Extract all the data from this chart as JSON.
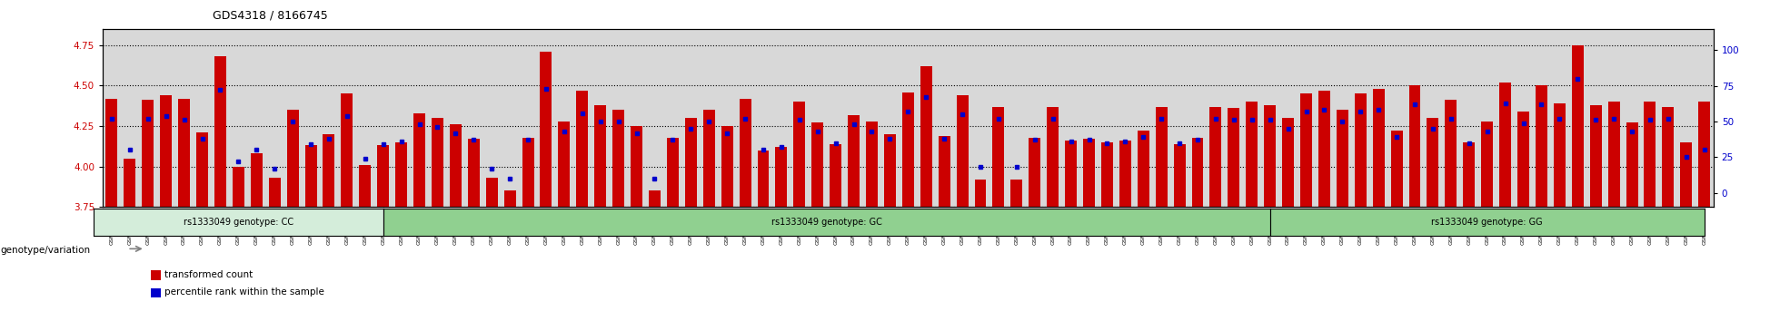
{
  "title": "GDS4318 / 8166745",
  "ylim_left": [
    3.75,
    4.85
  ],
  "ylim_right": [
    -10,
    115
  ],
  "yticks_left": [
    3.75,
    4.0,
    4.25,
    4.5,
    4.75
  ],
  "yticks_right": [
    0,
    25,
    50,
    75,
    100
  ],
  "bar_color": "#cc0000",
  "dot_color": "#0000cc",
  "axis_bg_color": "#d8d8d8",
  "cc_color": "#d4edda",
  "gc_color": "#90d090",
  "gg_color": "#90d090",
  "group_border_color": "#000000",
  "genotype_labels": [
    "rs1333049 genotype: CC",
    "rs1333049 genotype: GC",
    "rs1333049 genotype: GG"
  ],
  "samples": [
    "GSM955002",
    "GSM955008",
    "GSM955016",
    "GSM955019",
    "GSM955022",
    "GSM955023",
    "GSM955027",
    "GSM955043",
    "GSM955048",
    "GSM955049",
    "GSM955054",
    "GSM955064",
    "GSM955072",
    "GSM955075",
    "GSM955079",
    "GSM955087",
    "GSM955088",
    "GSM955089",
    "GSM955095",
    "GSM955097",
    "GSM955101",
    "GSM954999",
    "GSM955001",
    "GSM955003",
    "GSM955004",
    "GSM955005",
    "GSM955009",
    "GSM955011",
    "GSM955012",
    "GSM955013",
    "GSM955015",
    "GSM955017",
    "GSM955021",
    "GSM955025",
    "GSM955028",
    "GSM955029",
    "GSM955030",
    "GSM955032",
    "GSM955033",
    "GSM955034",
    "GSM955035",
    "GSM955036",
    "GSM955037",
    "GSM955039",
    "GSM955041",
    "GSM955042",
    "GSM955045",
    "GSM955046",
    "GSM955047",
    "GSM955050",
    "GSM955052",
    "GSM955053",
    "GSM955056",
    "GSM955058",
    "GSM955059",
    "GSM955060",
    "GSM955061",
    "GSM955065",
    "GSM955066",
    "GSM955067",
    "GSM955073",
    "GSM955074",
    "GSM955076",
    "GSM955078",
    "GSM955080",
    "GSM955006",
    "GSM955007",
    "GSM955010",
    "GSM955014",
    "GSM955018",
    "GSM955020",
    "GSM955024",
    "GSM955026",
    "GSM955031",
    "GSM955038",
    "GSM955040",
    "GSM955044",
    "GSM955051",
    "GSM955055",
    "GSM955057",
    "GSM955062",
    "GSM955063",
    "GSM955068",
    "GSM955069",
    "GSM955070",
    "GSM955071",
    "GSM955077",
    "GSM955102",
    "GSM955105"
  ],
  "transformed_counts": [
    4.42,
    4.05,
    4.41,
    4.44,
    4.42,
    4.21,
    4.68,
    4.0,
    4.08,
    3.93,
    4.35,
    4.13,
    4.2,
    4.45,
    4.01,
    4.13,
    4.15,
    4.33,
    4.3,
    4.26,
    4.17,
    3.93,
    3.85,
    4.18,
    4.71,
    4.28,
    4.47,
    4.38,
    4.35,
    4.25,
    3.85,
    4.18,
    4.3,
    4.35,
    4.25,
    4.42,
    4.1,
    4.12,
    4.4,
    4.27,
    4.14,
    4.32,
    4.28,
    4.2,
    4.46,
    4.62,
    4.19,
    4.44,
    3.92,
    4.37,
    3.92,
    4.18,
    4.37,
    4.16,
    4.17,
    4.15,
    4.16,
    4.22,
    4.37,
    4.14,
    4.18,
    4.37,
    4.36,
    4.4,
    4.38,
    4.3,
    4.45,
    4.47,
    4.35,
    4.45,
    4.48,
    4.22,
    4.5,
    4.3,
    4.41,
    4.15,
    4.28,
    4.52,
    4.34,
    4.5,
    4.39,
    4.75,
    4.38,
    4.4,
    4.27,
    4.4,
    4.37,
    4.15,
    4.4
  ],
  "percentile_ranks": [
    52,
    30,
    52,
    54,
    51,
    38,
    72,
    22,
    30,
    17,
    50,
    34,
    38,
    54,
    24,
    34,
    36,
    48,
    46,
    42,
    37,
    17,
    10,
    37,
    73,
    43,
    56,
    50,
    50,
    42,
    10,
    37,
    45,
    50,
    42,
    52,
    30,
    32,
    51,
    43,
    35,
    48,
    43,
    38,
    57,
    67,
    38,
    55,
    18,
    52,
    18,
    37,
    52,
    36,
    37,
    35,
    36,
    39,
    52,
    35,
    37,
    52,
    51,
    51,
    51,
    45,
    57,
    58,
    50,
    57,
    58,
    39,
    62,
    45,
    52,
    35,
    43,
    63,
    49,
    62,
    52,
    80,
    51,
    52,
    43,
    51,
    52,
    25,
    30
  ],
  "group_boundaries": [
    0,
    16,
    65,
    89
  ]
}
